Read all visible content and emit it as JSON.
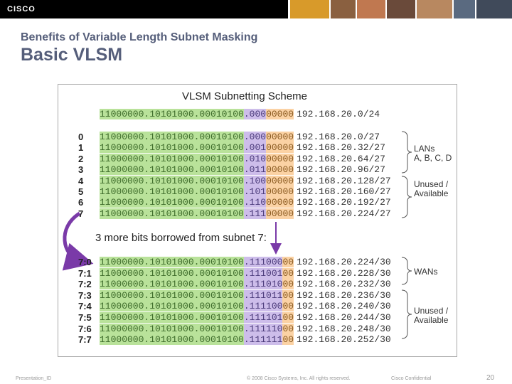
{
  "header": {
    "logo": "cisco",
    "subtitle": "Benefits of Variable Length Subnet Masking",
    "title": "Basic VLSM"
  },
  "figure": {
    "title": "VLSM Subnetting Scheme",
    "base_row": {
      "network": "11000000.10101000.00010100",
      "subnet": ".000",
      "host": "00000",
      "address": "192.168.20.0/24"
    },
    "rows": [
      {
        "label": "0",
        "network": "11000000.10101000.00010100",
        "subnet": ".000",
        "host": "00000",
        "address": "192.168.20.0/27"
      },
      {
        "label": "1",
        "network": "11000000.10101000.00010100",
        "subnet": ".001",
        "host": "00000",
        "address": "192.168.20.32/27"
      },
      {
        "label": "2",
        "network": "11000000.10101000.00010100",
        "subnet": ".010",
        "host": "00000",
        "address": "192.168.20.64/27"
      },
      {
        "label": "3",
        "network": "11000000.10101000.00010100",
        "subnet": ".011",
        "host": "00000",
        "address": "192.168.20.96/27"
      },
      {
        "label": "4",
        "network": "11000000.10101000.00010100",
        "subnet": ".100",
        "host": "00000",
        "address": "192.168.20.128/27"
      },
      {
        "label": "5",
        "network": "11000000.10101000.00010100",
        "subnet": ".101",
        "host": "00000",
        "address": "192.168.20.160/27"
      },
      {
        "label": "6",
        "network": "11000000.10101000.00010100",
        "subnet": ".110",
        "host": "00000",
        "address": "192.168.20.192/27"
      },
      {
        "label": "7",
        "network": "11000000.10101000.00010100",
        "subnet": ".111",
        "host": "00000",
        "address": "192.168.20.224/27"
      }
    ],
    "note": "3 more bits borrowed from subnet 7:",
    "sub_rows": [
      {
        "label": "7:0",
        "network": "11000000.10101000.00010100",
        "subnet": ".111000",
        "host": "00",
        "address": "192.168.20.224/30"
      },
      {
        "label": "7:1",
        "network": "11000000.10101000.00010100",
        "subnet": ".111001",
        "host": "00",
        "address": "192.168.20.228/30"
      },
      {
        "label": "7:2",
        "network": "11000000.10101000.00010100",
        "subnet": ".111010",
        "host": "00",
        "address": "192.168.20.232/30"
      },
      {
        "label": "7:3",
        "network": "11000000.10101000.00010100",
        "subnet": ".111011",
        "host": "00",
        "address": "192.168.20.236/30"
      },
      {
        "label": "7:4",
        "network": "11000000.10101000.00010100",
        "subnet": ".111100",
        "host": "00",
        "address": "192.168.20.240/30"
      },
      {
        "label": "7:5",
        "network": "11000000.10101000.00010100",
        "subnet": ".111101",
        "host": "00",
        "address": "192.168.20.244/30"
      },
      {
        "label": "7:6",
        "network": "11000000.10101000.00010100",
        "subnet": ".111110",
        "host": "00",
        "address": "192.168.20.248/30"
      },
      {
        "label": "7:7",
        "network": "11000000.10101000.00010100",
        "subnet": ".111111",
        "host": "00",
        "address": "192.168.20.252/30"
      }
    ],
    "brace_labels": [
      "LANs\nA, B, C, D",
      "Unused /\nAvailable",
      "WANs",
      "Unused /\nAvailable"
    ]
  },
  "footer": {
    "presentation": "Presentation_ID",
    "copyright": "© 2008 Cisco Systems, Inc. All rights reserved.",
    "confidential": "Cisco Confidential",
    "page": "20"
  }
}
